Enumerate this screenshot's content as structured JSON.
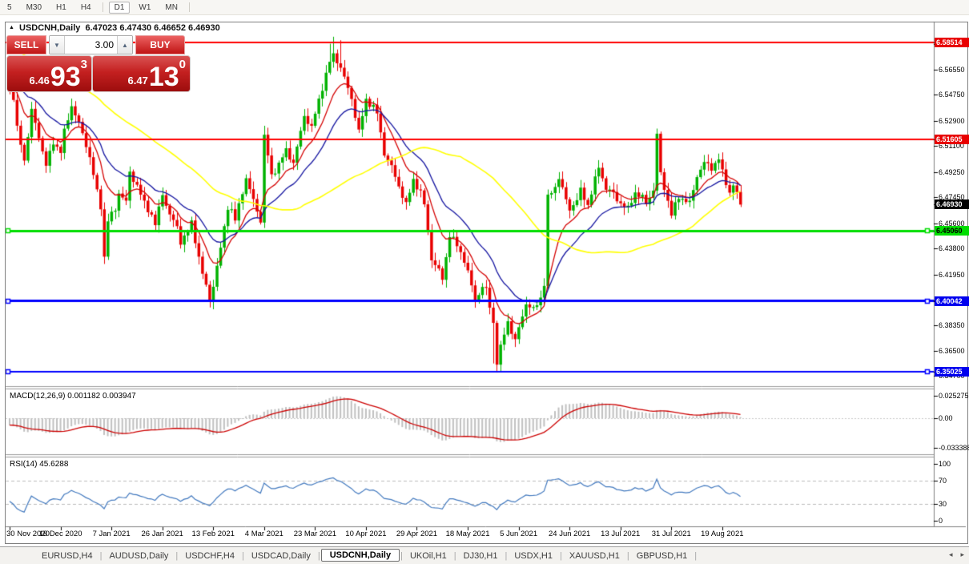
{
  "toolbar": {
    "timeframes": [
      {
        "label": "5",
        "active": false
      },
      {
        "label": "M30",
        "active": false
      },
      {
        "label": "H1",
        "active": false
      },
      {
        "label": "H4",
        "active": false
      },
      {
        "label": "D1",
        "active": true
      },
      {
        "label": "W1",
        "active": false
      },
      {
        "label": "MN",
        "active": false
      }
    ]
  },
  "title": {
    "collapse_icon": "▲",
    "symbol": "USDCNH,Daily",
    "ohlc": "6.47023 6.47430 6.46652 6.46930"
  },
  "trade_panel": {
    "sell_label": "SELL",
    "buy_label": "BUY",
    "volume": "3.00",
    "spinner_down": "▼",
    "spinner_up": "▲",
    "sell_price": {
      "small": "6.46",
      "big": "93",
      "sup": "3"
    },
    "buy_price": {
      "small": "6.47",
      "big": "13",
      "sup": "0"
    }
  },
  "price_axis": {
    "ticks": [
      {
        "label": "6.58350",
        "value": 6.5835
      },
      {
        "label": "6.56550",
        "value": 6.5655
      },
      {
        "label": "6.54750",
        "value": 6.5475
      },
      {
        "label": "6.52900",
        "value": 6.529
      },
      {
        "label": "6.51100",
        "value": 6.511
      },
      {
        "label": "6.49250",
        "value": 6.4925
      },
      {
        "label": "6.47450",
        "value": 6.4745
      },
      {
        "label": "6.45600",
        "value": 6.456
      },
      {
        "label": "6.43800",
        "value": 6.438
      },
      {
        "label": "6.41950",
        "value": 6.4195
      },
      {
        "label": "6.40100",
        "value": 6.401
      },
      {
        "label": "6.38350",
        "value": 6.3835
      },
      {
        "label": "6.36500",
        "value": 6.365
      },
      {
        "label": "6.34700",
        "value": 6.347
      }
    ],
    "badges": [
      {
        "label": "6.58514",
        "value": 6.58514,
        "bg": "#e80000",
        "fg": "#ffffff"
      },
      {
        "label": "6.51605",
        "value": 6.51605,
        "bg": "#e80000",
        "fg": "#ffffff"
      },
      {
        "label": "6.46930",
        "value": 6.4693,
        "bg": "#000000",
        "fg": "#ffffff"
      },
      {
        "label": "6.45060",
        "value": 6.4506,
        "bg": "#00dd00",
        "fg": "#000000"
      },
      {
        "label": "6.40042",
        "value": 6.40042,
        "bg": "#0000ee",
        "fg": "#ffffff"
      },
      {
        "label": "6.35025",
        "value": 6.35025,
        "bg": "#0000ee",
        "fg": "#ffffff"
      }
    ]
  },
  "levels": [
    {
      "value": 6.58514,
      "color": "#ff0000",
      "width": 2,
      "handles": false
    },
    {
      "value": 6.51605,
      "color": "#ff0000",
      "width": 2,
      "handles": false
    },
    {
      "value": 6.4506,
      "color": "#00dd00",
      "width": 3,
      "handles": true
    },
    {
      "value": 6.40042,
      "color": "#0000ff",
      "width": 3,
      "handles": true
    },
    {
      "value": 6.35025,
      "color": "#0000ff",
      "width": 2,
      "handles": true
    }
  ],
  "chart_data": {
    "type": "candlestick",
    "symbol": "USDCNH",
    "timeframe": "Daily",
    "count": 202,
    "up_color": "#00b200",
    "down_color": "#e80000",
    "wick_up_color": "#00b200",
    "wick_down_color": "#e80000",
    "y_axis": {
      "min": 6.3404,
      "max": 6.5992
    },
    "last_close": 6.4693,
    "warmup_start_price": 6.62,
    "close_waypoints": [
      [
        0,
        6.552
      ],
      [
        1,
        6.545
      ],
      [
        2,
        6.523
      ],
      [
        3,
        6.513
      ],
      [
        4,
        6.501
      ],
      [
        6,
        6.536
      ],
      [
        8,
        6.518
      ],
      [
        10,
        6.497
      ],
      [
        12,
        6.514
      ],
      [
        14,
        6.507
      ],
      [
        15,
        6.521
      ],
      [
        17,
        6.54
      ],
      [
        19,
        6.527
      ],
      [
        21,
        6.512
      ],
      [
        22,
        6.503
      ],
      [
        24,
        6.478
      ],
      [
        25,
        6.468
      ],
      [
        26,
        6.432
      ],
      [
        27,
        6.458
      ],
      [
        29,
        6.466
      ],
      [
        30,
        6.478
      ],
      [
        32,
        6.471
      ],
      [
        33,
        6.492
      ],
      [
        35,
        6.483
      ],
      [
        37,
        6.47
      ],
      [
        39,
        6.462
      ],
      [
        40,
        6.455
      ],
      [
        42,
        6.477
      ],
      [
        44,
        6.462
      ],
      [
        46,
        6.453
      ],
      [
        47,
        6.443
      ],
      [
        49,
        6.45
      ],
      [
        50,
        6.456
      ],
      [
        52,
        6.432
      ],
      [
        53,
        6.42
      ],
      [
        55,
        6.401
      ],
      [
        56,
        6.412
      ],
      [
        58,
        6.438
      ],
      [
        60,
        6.468
      ],
      [
        61,
        6.465
      ],
      [
        62,
        6.458
      ],
      [
        64,
        6.479
      ],
      [
        65,
        6.488
      ],
      [
        67,
        6.472
      ],
      [
        69,
        6.458
      ],
      [
        70,
        6.518
      ],
      [
        72,
        6.49
      ],
      [
        74,
        6.498
      ],
      [
        76,
        6.508
      ],
      [
        78,
        6.499
      ],
      [
        80,
        6.521
      ],
      [
        81,
        6.533
      ],
      [
        83,
        6.524
      ],
      [
        85,
        6.544
      ],
      [
        86,
        6.553
      ],
      [
        88,
        6.571
      ],
      [
        89,
        6.576
      ],
      [
        90,
        6.572
      ],
      [
        91,
        6.567
      ],
      [
        93,
        6.552
      ],
      [
        94,
        6.545
      ],
      [
        96,
        6.521
      ],
      [
        98,
        6.544
      ],
      [
        100,
        6.539
      ],
      [
        101,
        6.534
      ],
      [
        103,
        6.506
      ],
      [
        105,
        6.496
      ],
      [
        106,
        6.489
      ],
      [
        108,
        6.476
      ],
      [
        109,
        6.469
      ],
      [
        111,
        6.487
      ],
      [
        113,
        6.478
      ],
      [
        114,
        6.469
      ],
      [
        116,
        6.431
      ],
      [
        118,
        6.422
      ],
      [
        119,
        6.416
      ],
      [
        121,
        6.448
      ],
      [
        123,
        6.44
      ],
      [
        125,
        6.43
      ],
      [
        126,
        6.421
      ],
      [
        128,
        6.401
      ],
      [
        130,
        6.411
      ],
      [
        131,
        6.408
      ],
      [
        133,
        6.385
      ],
      [
        134,
        6.357
      ],
      [
        136,
        6.377
      ],
      [
        137,
        6.386
      ],
      [
        139,
        6.372
      ],
      [
        141,
        6.39
      ],
      [
        142,
        6.399
      ],
      [
        144,
        6.394
      ],
      [
        146,
        6.403
      ],
      [
        147,
        6.413
      ],
      [
        148,
        6.474
      ],
      [
        150,
        6.482
      ],
      [
        151,
        6.489
      ],
      [
        153,
        6.472
      ],
      [
        154,
        6.466
      ],
      [
        156,
        6.473
      ],
      [
        157,
        6.479
      ],
      [
        159,
        6.469
      ],
      [
        161,
        6.487
      ],
      [
        162,
        6.496
      ],
      [
        164,
        6.481
      ],
      [
        166,
        6.477
      ],
      [
        167,
        6.473
      ],
      [
        169,
        6.468
      ],
      [
        170,
        6.466
      ],
      [
        172,
        6.478
      ],
      [
        174,
        6.474
      ],
      [
        175,
        6.47
      ],
      [
        177,
        6.48
      ],
      [
        178,
        6.519
      ],
      [
        179,
        6.491
      ],
      [
        181,
        6.472
      ],
      [
        182,
        6.462
      ],
      [
        184,
        6.475
      ],
      [
        186,
        6.472
      ],
      [
        187,
        6.47
      ],
      [
        189,
        6.49
      ],
      [
        191,
        6.499
      ],
      [
        193,
        6.4955
      ],
      [
        195,
        6.502
      ],
      [
        196,
        6.492
      ],
      [
        198,
        6.478
      ],
      [
        199,
        6.4835
      ],
      [
        201,
        6.4693
      ]
    ],
    "high_marks": [
      [
        70,
        6.5255
      ],
      [
        88,
        6.584
      ],
      [
        89,
        6.589
      ],
      [
        91,
        6.5865
      ],
      [
        178,
        6.5235
      ],
      [
        195,
        6.5057
      ]
    ],
    "low_marks": [
      [
        55,
        6.3975
      ],
      [
        133,
        6.356
      ],
      [
        134,
        6.3495
      ]
    ],
    "moving_averages": [
      {
        "period": 10,
        "method": "ema",
        "color": "#d40000"
      },
      {
        "period": 21,
        "method": "ema",
        "color": "#1414a0"
      },
      {
        "period": 55,
        "method": "sma",
        "color": "#ffff00"
      }
    ],
    "x_label_step": 14,
    "x_labels": [
      "30 Nov 2020",
      "18 Dec 2020",
      "7 Jan 2021",
      "26 Jan 2021",
      "13 Feb 2021",
      "4 Mar 2021",
      "23 Mar 2021",
      "10 Apr 2021",
      "29 Apr 2021",
      "18 May 2021",
      "5 Jun 2021",
      "24 Jun 2021",
      "13 Jul 2021",
      "31 Jul 2021",
      "19 Aug 2021"
    ],
    "indicators": {
      "macd": {
        "label": "MACD(12,26,9) 0.001182 0.003947",
        "fast": 12,
        "slow": 26,
        "signal": 9,
        "current_macd": 0.001182,
        "current_signal": 0.003947,
        "bar_color": "#c0c0c0",
        "signal_color": "#cc0000",
        "axis": [
          {
            "label": "0.025275",
            "value": 0.025275
          },
          {
            "label": "0.00",
            "value": 0
          },
          {
            "label": "-0.033388",
            "value": -0.033388
          }
        ]
      },
      "rsi": {
        "label": "RSI(14) 45.6288",
        "period": 14,
        "current": 45.6288,
        "line_color": "#4178be",
        "levels": [
          70,
          30
        ],
        "axis": [
          {
            "label": "100",
            "value": 100
          },
          {
            "label": "70",
            "value": 70
          },
          {
            "label": "30",
            "value": 30
          },
          {
            "label": "0",
            "value": 0
          }
        ]
      }
    }
  },
  "tabs": {
    "items": [
      {
        "label": "EURUSD,H4",
        "active": false
      },
      {
        "label": "AUDUSD,Daily",
        "active": false
      },
      {
        "label": "USDCHF,H4",
        "active": false
      },
      {
        "label": "USDCAD,Daily",
        "active": false
      },
      {
        "label": "USDCNH,Daily",
        "active": true
      },
      {
        "label": "UKOil,H1",
        "active": false
      },
      {
        "label": "DJ30,H1",
        "active": false
      },
      {
        "label": "USDX,H1",
        "active": false
      },
      {
        "label": "XAUUSD,H1",
        "active": false
      },
      {
        "label": "GBPUSD,H1",
        "active": false
      }
    ],
    "left_arrow": "◂",
    "right_arrow": "▸"
  }
}
